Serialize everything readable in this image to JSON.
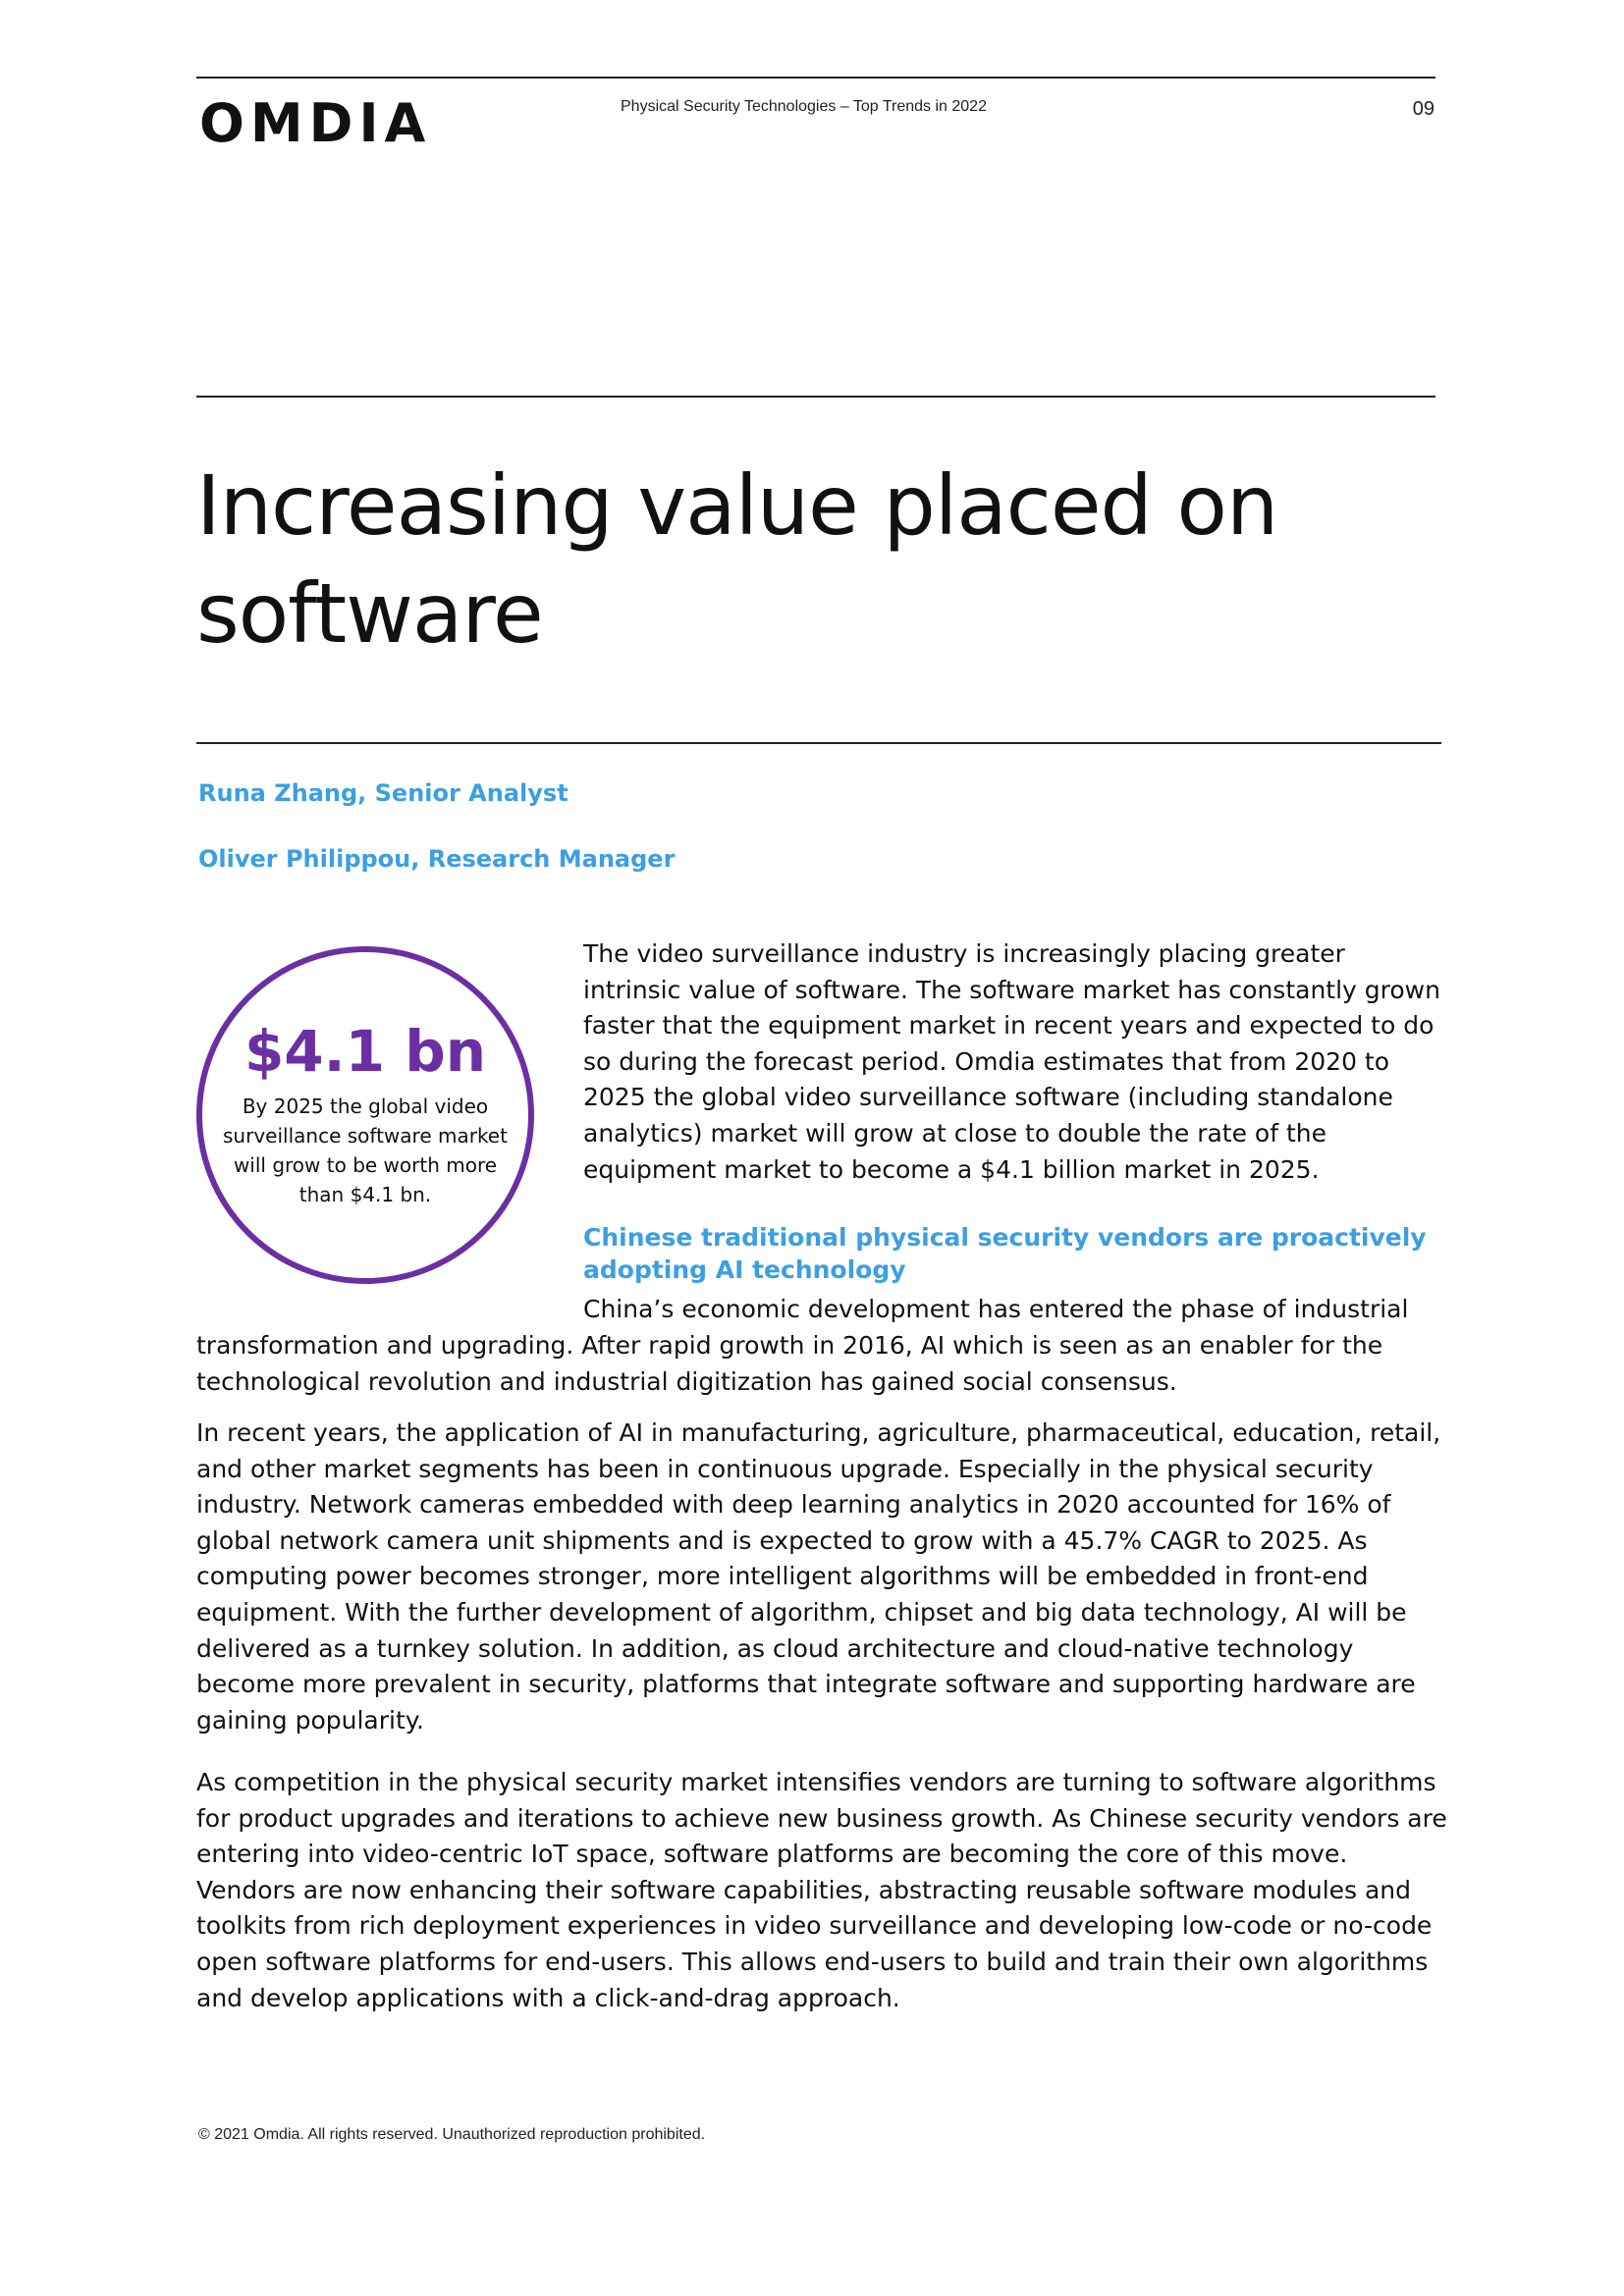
{
  "header": {
    "logo_text": "OMDIA",
    "running_title": "Physical Security Technologies – Top Trends in 2022",
    "page_number": "09"
  },
  "title": "Increasing value placed on software",
  "authors": [
    "Runa Zhang, Senior Analyst",
    "Oliver Philippou, Research Manager"
  ],
  "callout": {
    "value": "$4.1 bn",
    "text": "By 2025 the global video surveillance software market will grow to be worth more than $4.1 bn."
  },
  "paragraphs": {
    "p1": "The video surveillance industry is increasingly placing greater intrinsic value of software. The software market has constantly grown faster that the equipment market in recent years and expected to do so during the forecast period. Omdia estimates that from 2020 to 2025 the global video surveillance software (including standalone analytics) market will grow at close to double the rate of the equipment market to become a $4.1 billion market in 2025.",
    "subheading": "Chinese traditional physical security vendors are proactively adopting AI technology",
    "p2_first_line": "China’s economic development has entered the phase of industrial",
    "p2_rest": "transformation and upgrading. After rapid growth in 2016, AI which is seen as an enabler for the technological revolution and industrial digitization has gained social consensus.",
    "p3": "In recent years, the application of AI in manufacturing, agriculture, pharmaceutical, education, retail, and other market segments has been in continuous upgrade. Especially in the physical security industry. Network cameras embedded with deep learning analytics in 2020 accounted for 16% of global network camera unit shipments and is expected to grow with a 45.7% CAGR to 2025. As computing power becomes stronger, more intelligent algorithms will be embedded in front-end equipment. With the further development of algorithm, chipset and big data technology, AI will be delivered as a turnkey solution. In addition, as cloud architecture and cloud-native technology become more prevalent in security, platforms that integrate software and supporting hardware are gaining popularity.",
    "p4": "As competition in the physical security market intensifies vendors are turning to software algorithms for product upgrades and iterations to achieve new business growth. As Chinese security vendors are entering into video-centric IoT space, software platforms are becoming the core of this move. Vendors are now enhancing their software capabilities, abstracting reusable software modules and toolkits from rich deployment experiences in video surveillance and developing low-code or no-code open software platforms for end-users. This allows end-users to build and train their own algorithms and develop applications with a click-and-drag approach."
  },
  "footer": "© 2021 Omdia. All rights reserved. Unauthorized reproduction prohibited.",
  "colors": {
    "accent_blue": "#3b9fe3",
    "accent_purple": "#6b2fa3"
  }
}
